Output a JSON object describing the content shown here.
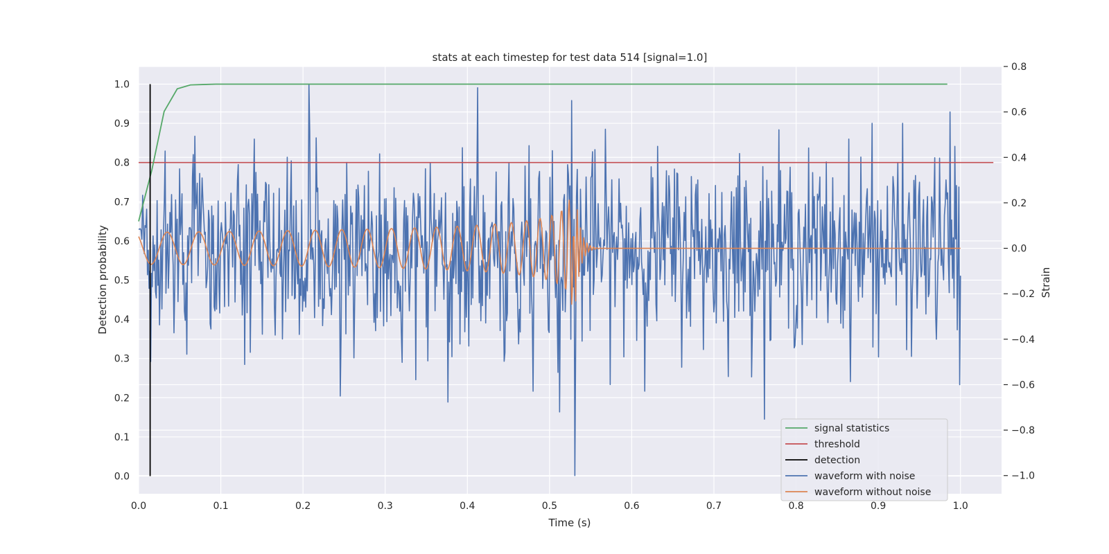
{
  "chart_data": {
    "type": "line",
    "title": "stats at each timestep for test data 514 [signal=1.0]",
    "xlabel": "Time (s)",
    "ylabel_left": "Detection probability",
    "ylabel_right": "Strain",
    "xlim": [
      0.0,
      1.05
    ],
    "ylim_left": [
      -0.045,
      1.045
    ],
    "ylim_right": [
      -1.08,
      0.8
    ],
    "x_ticks": [
      0.0,
      0.1,
      0.2,
      0.3,
      0.4,
      0.5,
      0.6,
      0.7,
      0.8,
      0.9,
      1.0
    ],
    "x_tick_labels": [
      "0.0",
      "0.1",
      "0.2",
      "0.3",
      "0.4",
      "0.5",
      "0.6",
      "0.7",
      "0.8",
      "0.9",
      "1.0"
    ],
    "y_left_ticks": [
      0.0,
      0.1,
      0.2,
      0.3,
      0.4,
      0.5,
      0.6,
      0.7,
      0.8,
      0.9,
      1.0
    ],
    "y_left_tick_labels": [
      "0.0",
      "0.1",
      "0.2",
      "0.3",
      "0.4",
      "0.5",
      "0.6",
      "0.7",
      "0.8",
      "0.9",
      "1.0"
    ],
    "y_right_ticks": [
      0.8,
      0.6,
      0.4,
      0.2,
      0.0,
      -0.2,
      -0.4,
      -0.6,
      -0.8,
      -1.0
    ],
    "y_right_tick_labels": [
      "0.8",
      "0.6",
      "0.4",
      "0.2",
      "0.0",
      "−0.2",
      "−0.4",
      "−0.6",
      "−0.8",
      "−1.0"
    ],
    "grid": true,
    "legend_position": "bottom-right",
    "colors": {
      "background": "#eaeaf2",
      "grid": "#ffffff",
      "signal_statistics": "#55a868",
      "threshold": "#c44e52",
      "detection": "#000000",
      "waveform_with_noise": "#4c72b0",
      "waveform_without_noise": "#dd8452"
    },
    "legend": [
      {
        "name": "signal statistics",
        "series": "signal_statistics"
      },
      {
        "name": "threshold",
        "series": "threshold"
      },
      {
        "name": "detection",
        "series": "detection"
      },
      {
        "name": "waveform with noise",
        "series": "waveform_with_noise"
      },
      {
        "name": "waveform without noise",
        "series": "waveform_without_noise"
      }
    ],
    "signal_statistics": {
      "axis": "left",
      "x": [
        0.0,
        0.016,
        0.031,
        0.047,
        0.063,
        0.078,
        0.094,
        0.2,
        0.4,
        0.6,
        0.8,
        0.984
      ],
      "y": [
        0.65,
        0.78,
        0.93,
        0.988,
        0.998,
        0.999,
        1.0,
        1.0,
        1.0,
        1.0,
        1.0,
        1.0
      ]
    },
    "threshold": {
      "axis": "left",
      "y": 0.8,
      "x_range": [
        0.0,
        1.04
      ]
    },
    "detection": {
      "axis": "left",
      "x": 0.014,
      "y_range": [
        0.0,
        1.0
      ]
    },
    "waveform_with_noise": {
      "axis": "right",
      "note": "dense noisy strain trace",
      "x_range": [
        0.0,
        1.0
      ],
      "points": 1024,
      "std": 0.2,
      "extremes": [
        {
          "x": 0.207,
          "y": 0.72
        },
        {
          "x": 0.531,
          "y": -1.0
        },
        {
          "x": 0.512,
          "y": -0.72
        },
        {
          "x": 0.245,
          "y": -0.65
        },
        {
          "x": 0.892,
          "y": 0.55
        },
        {
          "x": 0.987,
          "y": 0.6
        },
        {
          "x": 0.999,
          "y": -0.6
        },
        {
          "x": 0.527,
          "y": 0.65
        }
      ]
    },
    "waveform_without_noise": {
      "axis": "right",
      "note": "chirp signal growing in amplitude and frequency until merger near 0.53 s, then flat at 0",
      "x_range": [
        0.0,
        1.0
      ],
      "merger_time": 0.53,
      "initial_amplitude": 0.07,
      "peak_amplitude": 0.32
    }
  }
}
